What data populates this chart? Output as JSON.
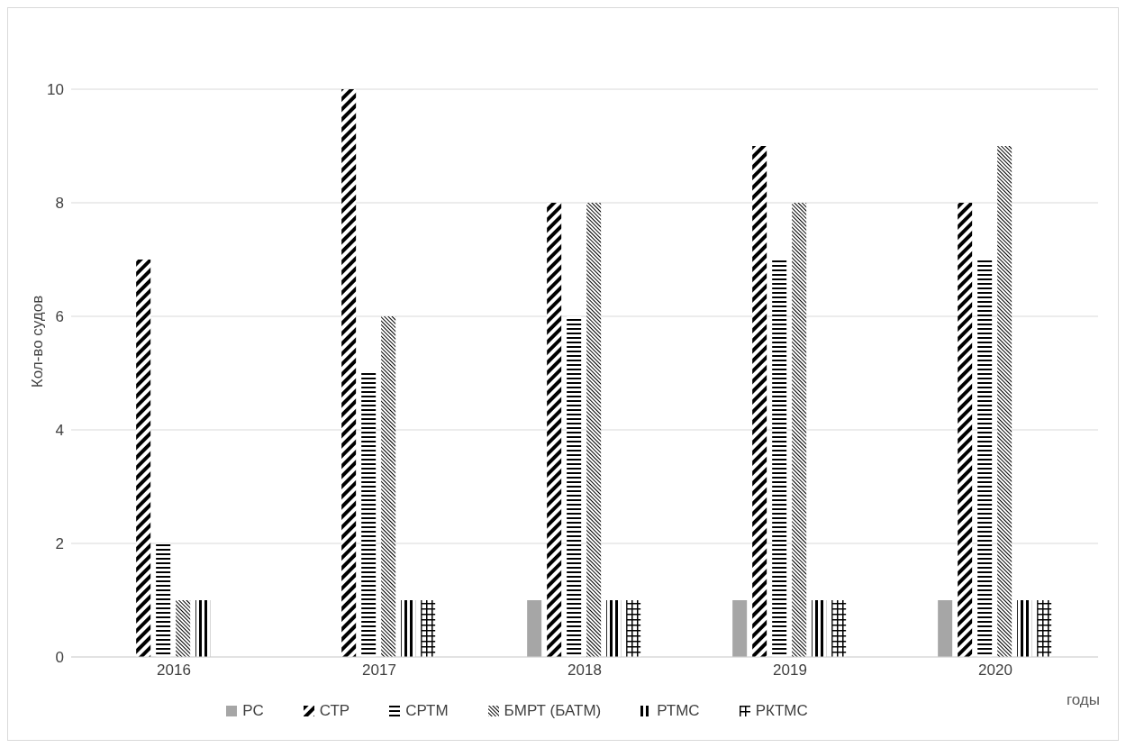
{
  "chart_data": {
    "type": "bar",
    "ylabel": "Кол-во судов",
    "xlabel": "годы",
    "categories": [
      "2016",
      "2017",
      "2018",
      "2019",
      "2020"
    ],
    "series": [
      {
        "name": "РС",
        "color": "#a6a6a6",
        "values": [
          0,
          0,
          1,
          1,
          1
        ]
      },
      {
        "name": "СТР",
        "color": "#000000",
        "values": [
          7,
          10,
          8,
          9,
          8
        ]
      },
      {
        "name": "СРТМ",
        "color": "#000000",
        "values": [
          2,
          5,
          6,
          7,
          7
        ]
      },
      {
        "name": "БМРТ (БАТМ)",
        "color": "#000000",
        "values": [
          1,
          6,
          8,
          8,
          9
        ]
      },
      {
        "name": "РТМС",
        "color": "#000000",
        "values": [
          1,
          1,
          1,
          1,
          1
        ]
      },
      {
        "name": "РКТМС",
        "color": "#000000",
        "values": [
          0,
          1,
          1,
          1,
          1
        ]
      }
    ],
    "ylim": [
      0,
      10
    ],
    "yticks": [
      0,
      2,
      4,
      6,
      8,
      10
    ],
    "grid": "y",
    "legend": "bottom"
  }
}
